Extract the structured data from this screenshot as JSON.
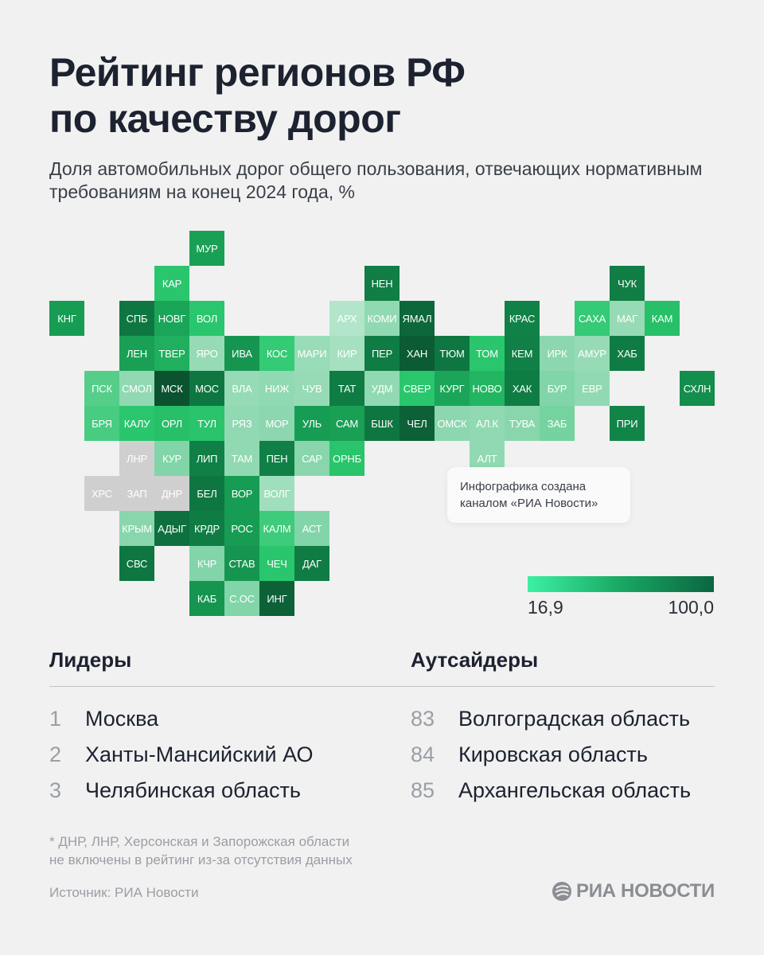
{
  "header": {
    "title_line1": "Рейтинг регионов РФ",
    "title_line2": "по качеству дорог",
    "subtitle": "Доля автомобильных дорог общего пользования, отвечающих нормативным требованиям на конец 2024 года, %"
  },
  "chart_data": {
    "type": "heatmap",
    "map_kind": "tile grid map of Russian regions",
    "value_unit": "%",
    "scale": {
      "min": 16.9,
      "max": 100.0,
      "min_label": "16,9",
      "max_label": "100,0",
      "color_low": "#3cf0a4",
      "color_high": "#0b6640",
      "no_data_color": "#cfcfcf"
    },
    "tiles": [
      {
        "code": "МУР",
        "value": 70
      },
      {
        "code": "КАР",
        "value": 55
      },
      {
        "code": "НЕН",
        "value": 85
      },
      {
        "code": "ЧУК",
        "value": 85
      },
      {
        "code": "КНГ",
        "value": 72
      },
      {
        "code": "СПБ",
        "value": 88
      },
      {
        "code": "НОВГ",
        "value": 68
      },
      {
        "code": "ВОЛ",
        "value": 55
      },
      {
        "code": "АРХ",
        "value": 16.9
      },
      {
        "code": "КОМИ",
        "value": 30
      },
      {
        "code": "ЯМАЛ",
        "value": 93
      },
      {
        "code": "КРАС",
        "value": 83
      },
      {
        "code": "САХА",
        "value": 52
      },
      {
        "code": "МАГ",
        "value": 28
      },
      {
        "code": "КАМ",
        "value": 58
      },
      {
        "code": "ЛЕН",
        "value": 70
      },
      {
        "code": "ТВЕР",
        "value": 64
      },
      {
        "code": "ЯРО",
        "value": 28
      },
      {
        "code": "ИВА",
        "value": 75
      },
      {
        "code": "КОС",
        "value": 52
      },
      {
        "code": "МАРИ",
        "value": 27
      },
      {
        "code": "КИР",
        "value": 22
      },
      {
        "code": "ПЕР",
        "value": 86
      },
      {
        "code": "ХАН",
        "value": 97
      },
      {
        "code": "ТЮМ",
        "value": 88
      },
      {
        "code": "ТОМ",
        "value": 55
      },
      {
        "code": "КЕМ",
        "value": 84
      },
      {
        "code": "ИРК",
        "value": 32
      },
      {
        "code": "АМУР",
        "value": 28
      },
      {
        "code": "ХАБ",
        "value": 86
      },
      {
        "code": "ПСК",
        "value": 45
      },
      {
        "code": "СМОЛ",
        "value": 30
      },
      {
        "code": "МСК",
        "value": 100
      },
      {
        "code": "МОС",
        "value": 88
      },
      {
        "code": "ВЛА",
        "value": 28
      },
      {
        "code": "НИЖ",
        "value": 30
      },
      {
        "code": "ЧУВ",
        "value": 28
      },
      {
        "code": "ТАТ",
        "value": 86
      },
      {
        "code": "УДМ",
        "value": 30
      },
      {
        "code": "СВЕР",
        "value": 55
      },
      {
        "code": "КУРГ",
        "value": 68
      },
      {
        "code": "НОВО",
        "value": 62
      },
      {
        "code": "ХАК",
        "value": 86
      },
      {
        "code": "БУР",
        "value": 35
      },
      {
        "code": "ЕВР",
        "value": 30
      },
      {
        "code": "СХЛН",
        "value": 78
      },
      {
        "code": "БРЯ",
        "value": 48
      },
      {
        "code": "КАЛУ",
        "value": 55
      },
      {
        "code": "ОРЛ",
        "value": 58
      },
      {
        "code": "ТУЛ",
        "value": 56
      },
      {
        "code": "РЯЗ",
        "value": 30
      },
      {
        "code": "МОР",
        "value": 32
      },
      {
        "code": "УЛЬ",
        "value": 72
      },
      {
        "code": "САМ",
        "value": 70
      },
      {
        "code": "БШК",
        "value": 88
      },
      {
        "code": "ЧЕЛ",
        "value": 95
      },
      {
        "code": "ОМСК",
        "value": 32
      },
      {
        "code": "АЛ.К",
        "value": 30
      },
      {
        "code": "ТУВА",
        "value": 33
      },
      {
        "code": "ЗАБ",
        "value": 38
      },
      {
        "code": "ПРИ",
        "value": 82
      },
      {
        "code": "ЛНР",
        "value": null
      },
      {
        "code": "КУР",
        "value": 35
      },
      {
        "code": "ЛИП",
        "value": 84
      },
      {
        "code": "ТАМ",
        "value": 30
      },
      {
        "code": "ПЕН",
        "value": 84
      },
      {
        "code": "САР",
        "value": 33
      },
      {
        "code": "ОРНБ",
        "value": 56
      },
      {
        "code": "АЛТ",
        "value": 30
      },
      {
        "code": "ХРС",
        "value": null
      },
      {
        "code": "ЗАП",
        "value": null
      },
      {
        "code": "ДНР",
        "value": null
      },
      {
        "code": "БЕЛ",
        "value": 88
      },
      {
        "code": "ВОР",
        "value": 72
      },
      {
        "code": "ВОЛГ",
        "value": 24
      },
      {
        "code": "КРЫМ",
        "value": 33
      },
      {
        "code": "АДЫГ",
        "value": 90
      },
      {
        "code": "КРДР",
        "value": 86
      },
      {
        "code": "РОС",
        "value": 72
      },
      {
        "code": "КАЛМ",
        "value": 50
      },
      {
        "code": "АСТ",
        "value": 35
      },
      {
        "code": "СВС",
        "value": 88
      },
      {
        "code": "КЧР",
        "value": 35
      },
      {
        "code": "СТАВ",
        "value": 75
      },
      {
        "code": "ЧЕЧ",
        "value": 55
      },
      {
        "code": "ДАГ",
        "value": 86
      },
      {
        "code": "КАБ",
        "value": 75
      },
      {
        "code": "С.ОС",
        "value": 35
      },
      {
        "code": "ИНГ",
        "value": 95
      }
    ]
  },
  "note": {
    "line1": "Инфографика создана",
    "line2": "каналом «РИА Новости»"
  },
  "leaders": {
    "heading": "Лидеры",
    "items": [
      {
        "rank": "1",
        "name": "Москва"
      },
      {
        "rank": "2",
        "name": "Ханты-Мансийский АО"
      },
      {
        "rank": "3",
        "name": "Челябинская область"
      }
    ]
  },
  "outsiders": {
    "heading": "Аутсайдеры",
    "items": [
      {
        "rank": "83",
        "name": "Волгоградская область"
      },
      {
        "rank": "84",
        "name": "Кировская область"
      },
      {
        "rank": "85",
        "name": "Архангельская область"
      }
    ]
  },
  "footnote": {
    "line1": "* ДНР, ЛНР, Херсонская и Запорожская области",
    "line2": "не включены в рейтинг из-за отсутствия данных"
  },
  "source": "Источник: РИА Новости",
  "logo": "РИА НОВОСТИ"
}
